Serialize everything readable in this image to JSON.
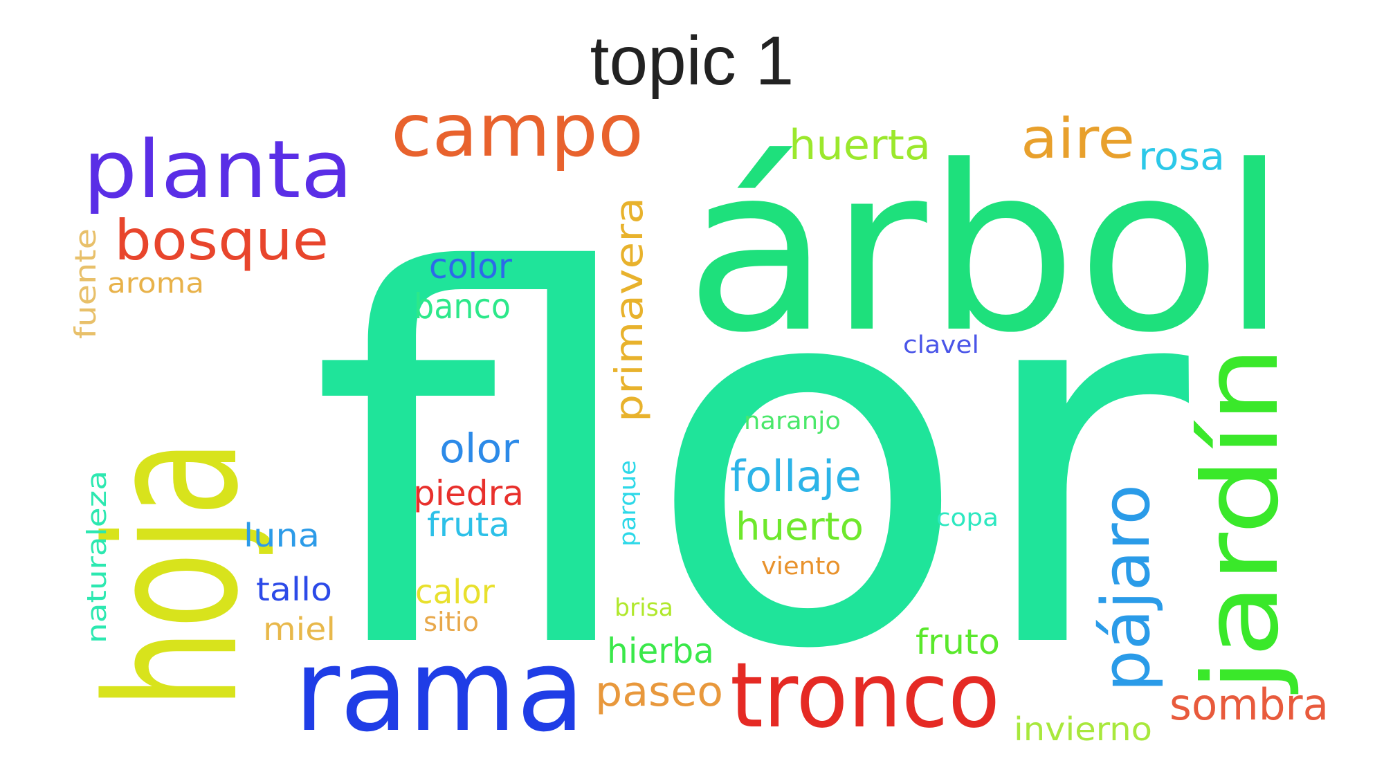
{
  "title": "topic 1",
  "words": [
    {
      "text": "flor",
      "color": "#1fe49a"
    },
    {
      "text": "árbol",
      "color": "#1ee07c"
    },
    {
      "text": "hoja",
      "color": "#d8e31c"
    },
    {
      "text": "rama",
      "color": "#1f3de6"
    },
    {
      "text": "tronco",
      "color": "#e52a24"
    },
    {
      "text": "jardín",
      "color": "#3ae82a"
    },
    {
      "text": "planta",
      "color": "#5a2ee6"
    },
    {
      "text": "campo",
      "color": "#e8622d"
    },
    {
      "text": "pájaro",
      "color": "#2a9be8"
    },
    {
      "text": "bosque",
      "color": "#e8452c"
    },
    {
      "text": "aire",
      "color": "#e8a02c"
    },
    {
      "text": "huerta",
      "color": "#9be82c"
    },
    {
      "text": "rosa",
      "color": "#2cc8e8"
    },
    {
      "text": "primavera",
      "color": "#e8b22c"
    },
    {
      "text": "color",
      "color": "#2c6be8"
    },
    {
      "text": "banco",
      "color": "#2ce88a"
    },
    {
      "text": "fuente",
      "color": "#e8c06a"
    },
    {
      "text": "aroma",
      "color": "#e8b24a"
    },
    {
      "text": "clavel",
      "color": "#4a55e8"
    },
    {
      "text": "naranjo",
      "color": "#4ae86a"
    },
    {
      "text": "olor",
      "color": "#2c8ae8"
    },
    {
      "text": "follaje",
      "color": "#2cb4e8"
    },
    {
      "text": "piedra",
      "color": "#e8302c"
    },
    {
      "text": "fruta",
      "color": "#2cc0e8"
    },
    {
      "text": "huerto",
      "color": "#6ee82c"
    },
    {
      "text": "parque",
      "color": "#2cd8e8"
    },
    {
      "text": "naturaleza",
      "color": "#2ce8b0"
    },
    {
      "text": "luna",
      "color": "#2c9be8"
    },
    {
      "text": "copa",
      "color": "#2ce8c0"
    },
    {
      "text": "viento",
      "color": "#e8922c"
    },
    {
      "text": "tallo",
      "color": "#2c4ae8"
    },
    {
      "text": "calor",
      "color": "#e8e02c"
    },
    {
      "text": "brisa",
      "color": "#b0e82c"
    },
    {
      "text": "miel",
      "color": "#e8b84a"
    },
    {
      "text": "sitio",
      "color": "#e8a84a"
    },
    {
      "text": "hierba",
      "color": "#3ae84a"
    },
    {
      "text": "fruto",
      "color": "#5ae82c"
    },
    {
      "text": "paseo",
      "color": "#e8983c"
    },
    {
      "text": "sombra",
      "color": "#e85a3c"
    },
    {
      "text": "invierno",
      "color": "#a8e83c"
    }
  ]
}
